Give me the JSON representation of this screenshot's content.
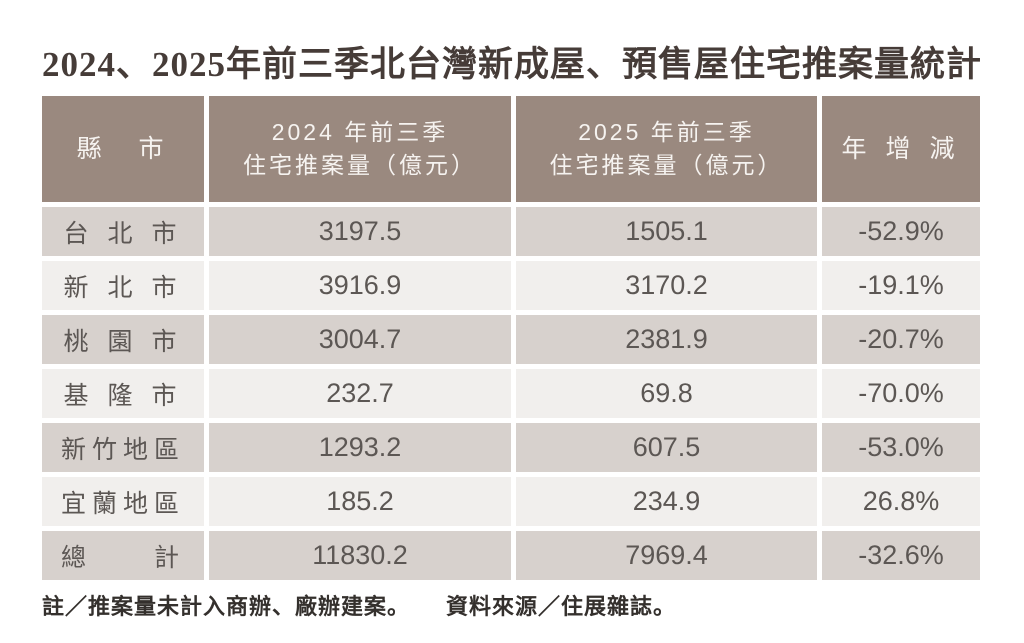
{
  "title": "2024、2025年前三季北台灣新成屋、預售屋住宅推案量統計",
  "colors": {
    "title_text": "#463c38",
    "header_bg": "#9a897f",
    "header_text": "#f6f3f0",
    "row_odd_bg": "#d7d1cd",
    "row_even_bg": "#f1efed",
    "cell_text": "#5c5754",
    "footer_text": "#34302d"
  },
  "table": {
    "columns": {
      "city": "縣　市",
      "y2024_line1": "2024 年前三季",
      "y2024_line2": "住宅推案量（億元）",
      "y2025_line1": "2025 年前三季",
      "y2025_line2": "住宅推案量（億元）",
      "yoy": "年 增 減"
    },
    "rows": [
      {
        "city": "台 北 市",
        "y2024": "3197.5",
        "y2025": "1505.1",
        "yoy": "-52.9%"
      },
      {
        "city": "新 北 市",
        "y2024": "3916.9",
        "y2025": "3170.2",
        "yoy": "-19.1%"
      },
      {
        "city": "桃 園 市",
        "y2024": "3004.7",
        "y2025": "2381.9",
        "yoy": "-20.7%"
      },
      {
        "city": "基 隆 市",
        "y2024": "232.7",
        "y2025": "69.8",
        "yoy": "-70.0%"
      },
      {
        "city": "新竹地區",
        "y2024": "1293.2",
        "y2025": "607.5",
        "yoy": "-53.0%"
      },
      {
        "city": "宜蘭地區",
        "y2024": "185.2",
        "y2025": "234.9",
        "yoy": "26.8%"
      },
      {
        "city": "總　　計",
        "y2024": "11830.2",
        "y2025": "7969.4",
        "yoy": "-32.6%"
      }
    ]
  },
  "footer": {
    "note": "註／推案量未計入商辦、廠辦建案。",
    "source": "資料來源／住展雜誌。"
  },
  "chart_data": {
    "type": "table",
    "title": "2024、2025年前三季北台灣新成屋、預售屋住宅推案量統計",
    "columns": [
      "縣市",
      "2024年前三季住宅推案量（億元）",
      "2025年前三季住宅推案量（億元）",
      "年增減"
    ],
    "rows": [
      [
        "台北市",
        3197.5,
        1505.1,
        "-52.9%"
      ],
      [
        "新北市",
        3916.9,
        3170.2,
        "-19.1%"
      ],
      [
        "桃園市",
        3004.7,
        2381.9,
        "-20.7%"
      ],
      [
        "基隆市",
        232.7,
        69.8,
        "-70.0%"
      ],
      [
        "新竹地區",
        1293.2,
        607.5,
        "-53.0%"
      ],
      [
        "宜蘭地區",
        185.2,
        234.9,
        "26.8%"
      ],
      [
        "總計",
        11830.2,
        7969.4,
        "-32.6%"
      ]
    ],
    "note": "註／推案量未計入商辦、廠辦建案。",
    "source": "資料來源／住展雜誌。"
  }
}
